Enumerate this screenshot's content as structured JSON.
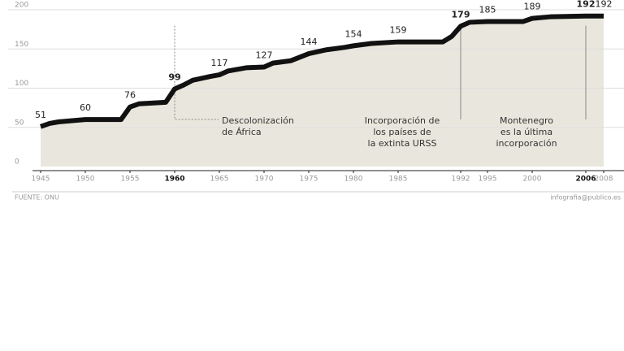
{
  "chart_data": {
    "type": "area",
    "x": [
      1945,
      1946,
      1947,
      1950,
      1954,
      1955,
      1956,
      1959,
      1960,
      1961,
      1962,
      1964,
      1965,
      1966,
      1968,
      1970,
      1971,
      1973,
      1975,
      1977,
      1979,
      1980,
      1982,
      1985,
      1990,
      1991,
      1992,
      1993,
      1995,
      1999,
      2000,
      2002,
      2006,
      2008
    ],
    "series": [
      {
        "color": "#111111",
        "fill": "#e9e7dd",
        "values": [
          51,
          55,
          57,
          60,
          60,
          76,
          80,
          82,
          99,
          104,
          110,
          115,
          117,
          122,
          126,
          127,
          132,
          135,
          144,
          149,
          152,
          154,
          157,
          159,
          159,
          166,
          179,
          184,
          185,
          185,
          189,
          191,
          192,
          192
        ]
      }
    ],
    "xlim": [
      1945,
      2008
    ],
    "ylim": [
      0,
      200
    ],
    "xticks": [
      1945,
      1950,
      1955,
      1960,
      1965,
      1970,
      1975,
      1980,
      1985,
      1992,
      1995,
      2000,
      2006,
      2008
    ],
    "yticks": [
      0,
      50,
      100,
      150,
      200
    ],
    "grid": true,
    "highlight": [
      1960,
      1992,
      2006
    ],
    "annotations": [
      {
        "x": 1960,
        "lines": [
          "Descolonización",
          "de África"
        ]
      },
      {
        "x": 1992,
        "lines": [
          "Incorporación de",
          "los países de",
          "la extinta URSS"
        ]
      },
      {
        "x": 2006,
        "lines": [
          "Montenegro",
          "es la última",
          "incorporación"
        ]
      }
    ],
    "source": "FUENTE: ONU",
    "credit": "infografia@publico.es"
  }
}
